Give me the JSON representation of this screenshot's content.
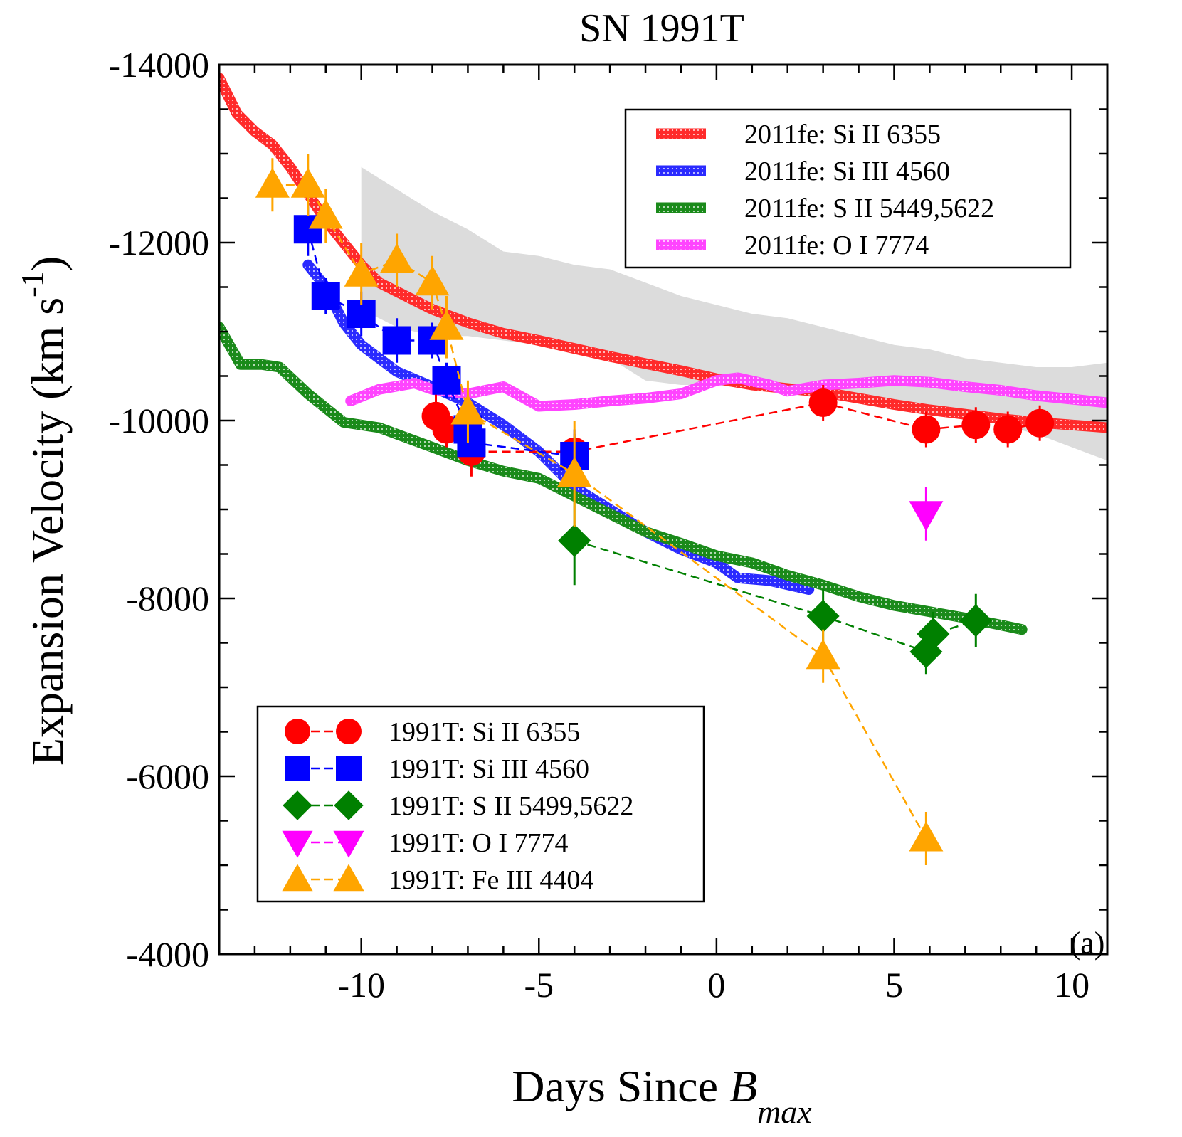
{
  "chart_data": {
    "type": "line",
    "title": "SN 1991T",
    "xlabel": "Days Since B",
    "xlabel_parts": {
      "main": "Days Since ",
      "italic": "B",
      "subscript": "max"
    },
    "ylabel": "Expansion Velocity (km s",
    "ylabel_sup": "-1",
    "ylabel_close": ")",
    "panel_label": "(a)",
    "xlim": [
      -14,
      11
    ],
    "ylim": [
      -14000,
      -4000
    ],
    "xticks": [
      -10,
      -5,
      0,
      5,
      10
    ],
    "yticks": [
      -14000,
      -12000,
      -10000,
      -8000,
      -6000,
      -4000
    ],
    "xtick_labels": [
      "-10",
      "-5",
      "0",
      "5",
      "10"
    ],
    "ytick_labels": [
      "-14000",
      "-12000",
      "-10000",
      "-8000",
      "-6000",
      "-4000"
    ],
    "shaded_band": {
      "upper": [
        [
          -10,
          -12850
        ],
        [
          -9,
          -12600
        ],
        [
          -8,
          -12350
        ],
        [
          -7,
          -12150
        ],
        [
          -6,
          -11900
        ],
        [
          -5,
          -11850
        ],
        [
          -4,
          -11750
        ],
        [
          -3,
          -11700
        ],
        [
          -2,
          -11550
        ],
        [
          -1,
          -11400
        ],
        [
          0,
          -11300
        ],
        [
          1,
          -11200
        ],
        [
          2,
          -11150
        ],
        [
          3,
          -11050
        ],
        [
          4,
          -10950
        ],
        [
          5,
          -10850
        ],
        [
          6,
          -10800
        ],
        [
          7,
          -10700
        ],
        [
          8,
          -10650
        ],
        [
          9,
          -10600
        ],
        [
          10,
          -10600
        ],
        [
          11,
          -10650
        ]
      ],
      "lower": [
        [
          -10,
          -11250
        ],
        [
          -9,
          -11050
        ],
        [
          -8,
          -10950
        ],
        [
          -7,
          -10950
        ],
        [
          -6,
          -10900
        ],
        [
          -5,
          -10850
        ],
        [
          -4,
          -10750
        ],
        [
          -3,
          -10700
        ],
        [
          -2,
          -10450
        ],
        [
          -1,
          -10400
        ],
        [
          0,
          -10400
        ],
        [
          1,
          -10350
        ],
        [
          2,
          -10300
        ],
        [
          3,
          -10250
        ],
        [
          4,
          -10200
        ],
        [
          5,
          -10150
        ],
        [
          6,
          -10100
        ],
        [
          7,
          -10050
        ],
        [
          8,
          -9950
        ],
        [
          9,
          -9850
        ],
        [
          10,
          -9700
        ],
        [
          11,
          -9550
        ]
      ]
    },
    "model_series": [
      {
        "name": "2011fe: Si II 6355",
        "color": "#ff2a2a",
        "points": [
          [
            -14,
            -13850
          ],
          [
            -13.5,
            -13450
          ],
          [
            -13,
            -13250
          ],
          [
            -12.5,
            -13100
          ],
          [
            -12,
            -12850
          ],
          [
            -11.5,
            -12550
          ],
          [
            -11,
            -12250
          ],
          [
            -10.5,
            -12000
          ],
          [
            -10,
            -11750
          ],
          [
            -9.5,
            -11550
          ],
          [
            -9,
            -11450
          ],
          [
            -8.5,
            -11350
          ],
          [
            -8,
            -11250
          ],
          [
            -7,
            -11100
          ],
          [
            -6,
            -10980
          ],
          [
            -5,
            -10900
          ],
          [
            -4,
            -10810
          ],
          [
            -3,
            -10720
          ],
          [
            -2,
            -10640
          ],
          [
            -1,
            -10560
          ],
          [
            0,
            -10470
          ],
          [
            1,
            -10400
          ],
          [
            2,
            -10360
          ],
          [
            3,
            -10320
          ],
          [
            4,
            -10250
          ],
          [
            5,
            -10180
          ],
          [
            6,
            -10120
          ],
          [
            7,
            -10070
          ],
          [
            8,
            -10020
          ],
          [
            9,
            -9980
          ],
          [
            10,
            -9950
          ],
          [
            11,
            -9920
          ]
        ]
      },
      {
        "name": "2011fe: Si III 4560",
        "color": "#2a2aff",
        "points": [
          [
            -11.5,
            -11750
          ],
          [
            -11,
            -11500
          ],
          [
            -10.5,
            -11100
          ],
          [
            -10,
            -10850
          ],
          [
            -9.5,
            -10700
          ],
          [
            -9,
            -10550
          ],
          [
            -8,
            -10380
          ],
          [
            -7,
            -10200
          ],
          [
            -6,
            -9950
          ],
          [
            -5,
            -9650
          ],
          [
            -4,
            -9250
          ],
          [
            -3,
            -9000
          ],
          [
            -2,
            -8750
          ],
          [
            -1,
            -8550
          ],
          [
            0,
            -8400
          ],
          [
            0.6,
            -8230
          ],
          [
            1.5,
            -8200
          ],
          [
            2.6,
            -8100
          ]
        ]
      },
      {
        "name": "2011fe: S II 5449,5622",
        "color": "#1a8a1a",
        "points": [
          [
            -14,
            -11050
          ],
          [
            -13.4,
            -10630
          ],
          [
            -12.8,
            -10630
          ],
          [
            -12.3,
            -10600
          ],
          [
            -11.5,
            -10300
          ],
          [
            -10.5,
            -9980
          ],
          [
            -10,
            -9950
          ],
          [
            -9.5,
            -9920
          ],
          [
            -8,
            -9700
          ],
          [
            -7,
            -9550
          ],
          [
            -6,
            -9430
          ],
          [
            -5,
            -9350
          ],
          [
            -4,
            -9150
          ],
          [
            -3,
            -8950
          ],
          [
            -2,
            -8750
          ],
          [
            -1,
            -8620
          ],
          [
            0,
            -8480
          ],
          [
            1,
            -8400
          ],
          [
            2,
            -8260
          ],
          [
            3,
            -8150
          ],
          [
            4,
            -8020
          ],
          [
            5,
            -7920
          ],
          [
            6,
            -7850
          ],
          [
            7,
            -7780
          ],
          [
            8,
            -7700
          ],
          [
            8.6,
            -7650
          ]
        ]
      },
      {
        "name": "2011fe: O I 7774",
        "color": "#ff44ff",
        "points": [
          [
            -10.3,
            -10220
          ],
          [
            -9.5,
            -10350
          ],
          [
            -8.5,
            -10420
          ],
          [
            -8,
            -10350
          ],
          [
            -7,
            -10300
          ],
          [
            -6,
            -10380
          ],
          [
            -5,
            -10160
          ],
          [
            -4,
            -10180
          ],
          [
            -3,
            -10220
          ],
          [
            -2,
            -10250
          ],
          [
            -1,
            -10300
          ],
          [
            0,
            -10450
          ],
          [
            0.6,
            -10480
          ],
          [
            1.5,
            -10400
          ],
          [
            2,
            -10330
          ],
          [
            3,
            -10400
          ],
          [
            4,
            -10420
          ],
          [
            5,
            -10450
          ],
          [
            6,
            -10430
          ],
          [
            7,
            -10380
          ],
          [
            8,
            -10340
          ],
          [
            9,
            -10280
          ],
          [
            10,
            -10240
          ],
          [
            11,
            -10200
          ]
        ]
      }
    ],
    "observed_series": [
      {
        "name": "1991T: Si II 6355",
        "color": "#ff0000",
        "marker": "circle",
        "points": [
          [
            -7.9,
            -10050,
            250
          ],
          [
            -7.6,
            -9900,
            200
          ],
          [
            -6.9,
            -9650,
            280
          ],
          [
            -4,
            -9650,
            200
          ],
          [
            3,
            -10200,
            200
          ],
          [
            5.9,
            -9900,
            200
          ],
          [
            7.3,
            -9950,
            200
          ],
          [
            8.2,
            -9900,
            200
          ],
          [
            9.1,
            -9970,
            200
          ]
        ]
      },
      {
        "name": "1991T: Si III 4560",
        "color": "#0000ff",
        "marker": "square",
        "points": [
          [
            -11.5,
            -12150,
            300
          ],
          [
            -11,
            -11400,
            200
          ],
          [
            -10,
            -11200,
            250
          ],
          [
            -9,
            -10900,
            250
          ],
          [
            -8,
            -10900,
            200
          ],
          [
            -7.6,
            -10450,
            200
          ],
          [
            -7,
            -9900,
            200
          ],
          [
            -6.9,
            -9750,
            150
          ],
          [
            -4,
            -9600,
            300
          ]
        ]
      },
      {
        "name": "1991T: S II 5499,5622",
        "color": "#008000",
        "marker": "diamond",
        "points": [
          [
            -4,
            -8650,
            500
          ],
          [
            3,
            -7800,
            300
          ],
          [
            5.9,
            -7400,
            250
          ],
          [
            6.1,
            -7600,
            250
          ],
          [
            7.3,
            -7750,
            300
          ]
        ]
      },
      {
        "name": "1991T: O I 7774",
        "color": "#ff00ff",
        "marker": "triangle-down",
        "points": [
          [
            5.9,
            -8950,
            300
          ]
        ]
      },
      {
        "name": "1991T: Fe III 4404",
        "color": "#ffa500",
        "marker": "triangle-up",
        "points": [
          [
            -12.5,
            -12650,
            300
          ],
          [
            -11.5,
            -12650,
            350
          ],
          [
            -11,
            -12300,
            300
          ],
          [
            -10,
            -11650,
            350
          ],
          [
            -9,
            -11800,
            300
          ],
          [
            -8,
            -11550,
            300
          ],
          [
            -7.6,
            -11050,
            350
          ],
          [
            -7,
            -10100,
            350
          ],
          [
            -4,
            -9400,
            600
          ],
          [
            3,
            -7350,
            300
          ],
          [
            5.9,
            -5300,
            300
          ]
        ]
      }
    ]
  }
}
